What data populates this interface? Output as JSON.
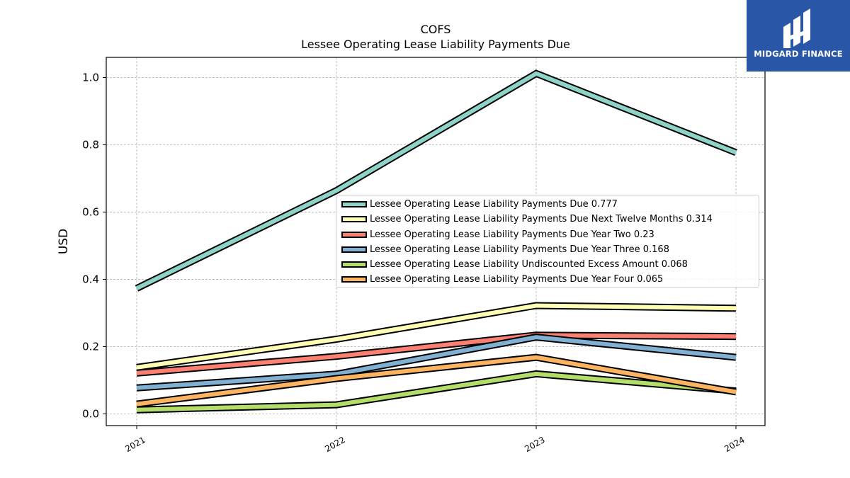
{
  "chart_data": {
    "type": "line",
    "title": "COFS",
    "subtitle": "Lessee Operating Lease Liability Payments Due",
    "xlabel": "",
    "ylabel": "USD",
    "categories": [
      "2021",
      "2022",
      "2023",
      "2024"
    ],
    "ylim": [
      -0.035,
      1.06
    ],
    "yticks": [
      "0.0",
      "0.2",
      "0.4",
      "0.6",
      "0.8",
      "1.0"
    ],
    "grid": true,
    "legend_position": "center-right",
    "series": [
      {
        "name": "Lessee Operating Lease Liability Payments Due",
        "legend": "Lessee Operating Lease Liability Payments Due  0.777",
        "color": "#8dd3c7",
        "values": [
          0.373,
          0.664,
          1.012,
          0.777
        ]
      },
      {
        "name": "Lessee Operating Lease Liability Payments Due Next Twelve Months",
        "legend": "Lessee Operating Lease Liability Payments Due Next Twelve Months  0.314",
        "color": "#ffffb3",
        "values": [
          0.138,
          0.222,
          0.322,
          0.314
        ]
      },
      {
        "name": "Lessee Operating Lease Liability Payments Due Year Two",
        "legend": "Lessee Operating Lease Liability Payments Due Year Two  0.23",
        "color": "#fb8072",
        "values": [
          0.121,
          0.171,
          0.234,
          0.23
        ]
      },
      {
        "name": "Lessee Operating Lease Liability Payments Due Year Three",
        "legend": "Lessee Operating Lease Liability Payments Due Year Three  0.168",
        "color": "#80b1d3",
        "values": [
          0.077,
          0.118,
          0.228,
          0.168
        ]
      },
      {
        "name": "Lessee Operating Lease Liability Undiscounted Excess Amount",
        "legend": "Lessee Operating Lease Liability Undiscounted Excess Amount  0.068",
        "color": "#b3de69",
        "values": [
          0.012,
          0.027,
          0.119,
          0.068
        ]
      },
      {
        "name": "Lessee Operating Lease Liability Payments Due Year Four",
        "legend": "Lessee Operating Lease Liability Payments Due Year Four  0.065",
        "color": "#fdb462",
        "values": [
          0.029,
          0.105,
          0.168,
          0.065
        ]
      }
    ]
  },
  "logo": {
    "text": "MIDGARD FINANCE"
  }
}
